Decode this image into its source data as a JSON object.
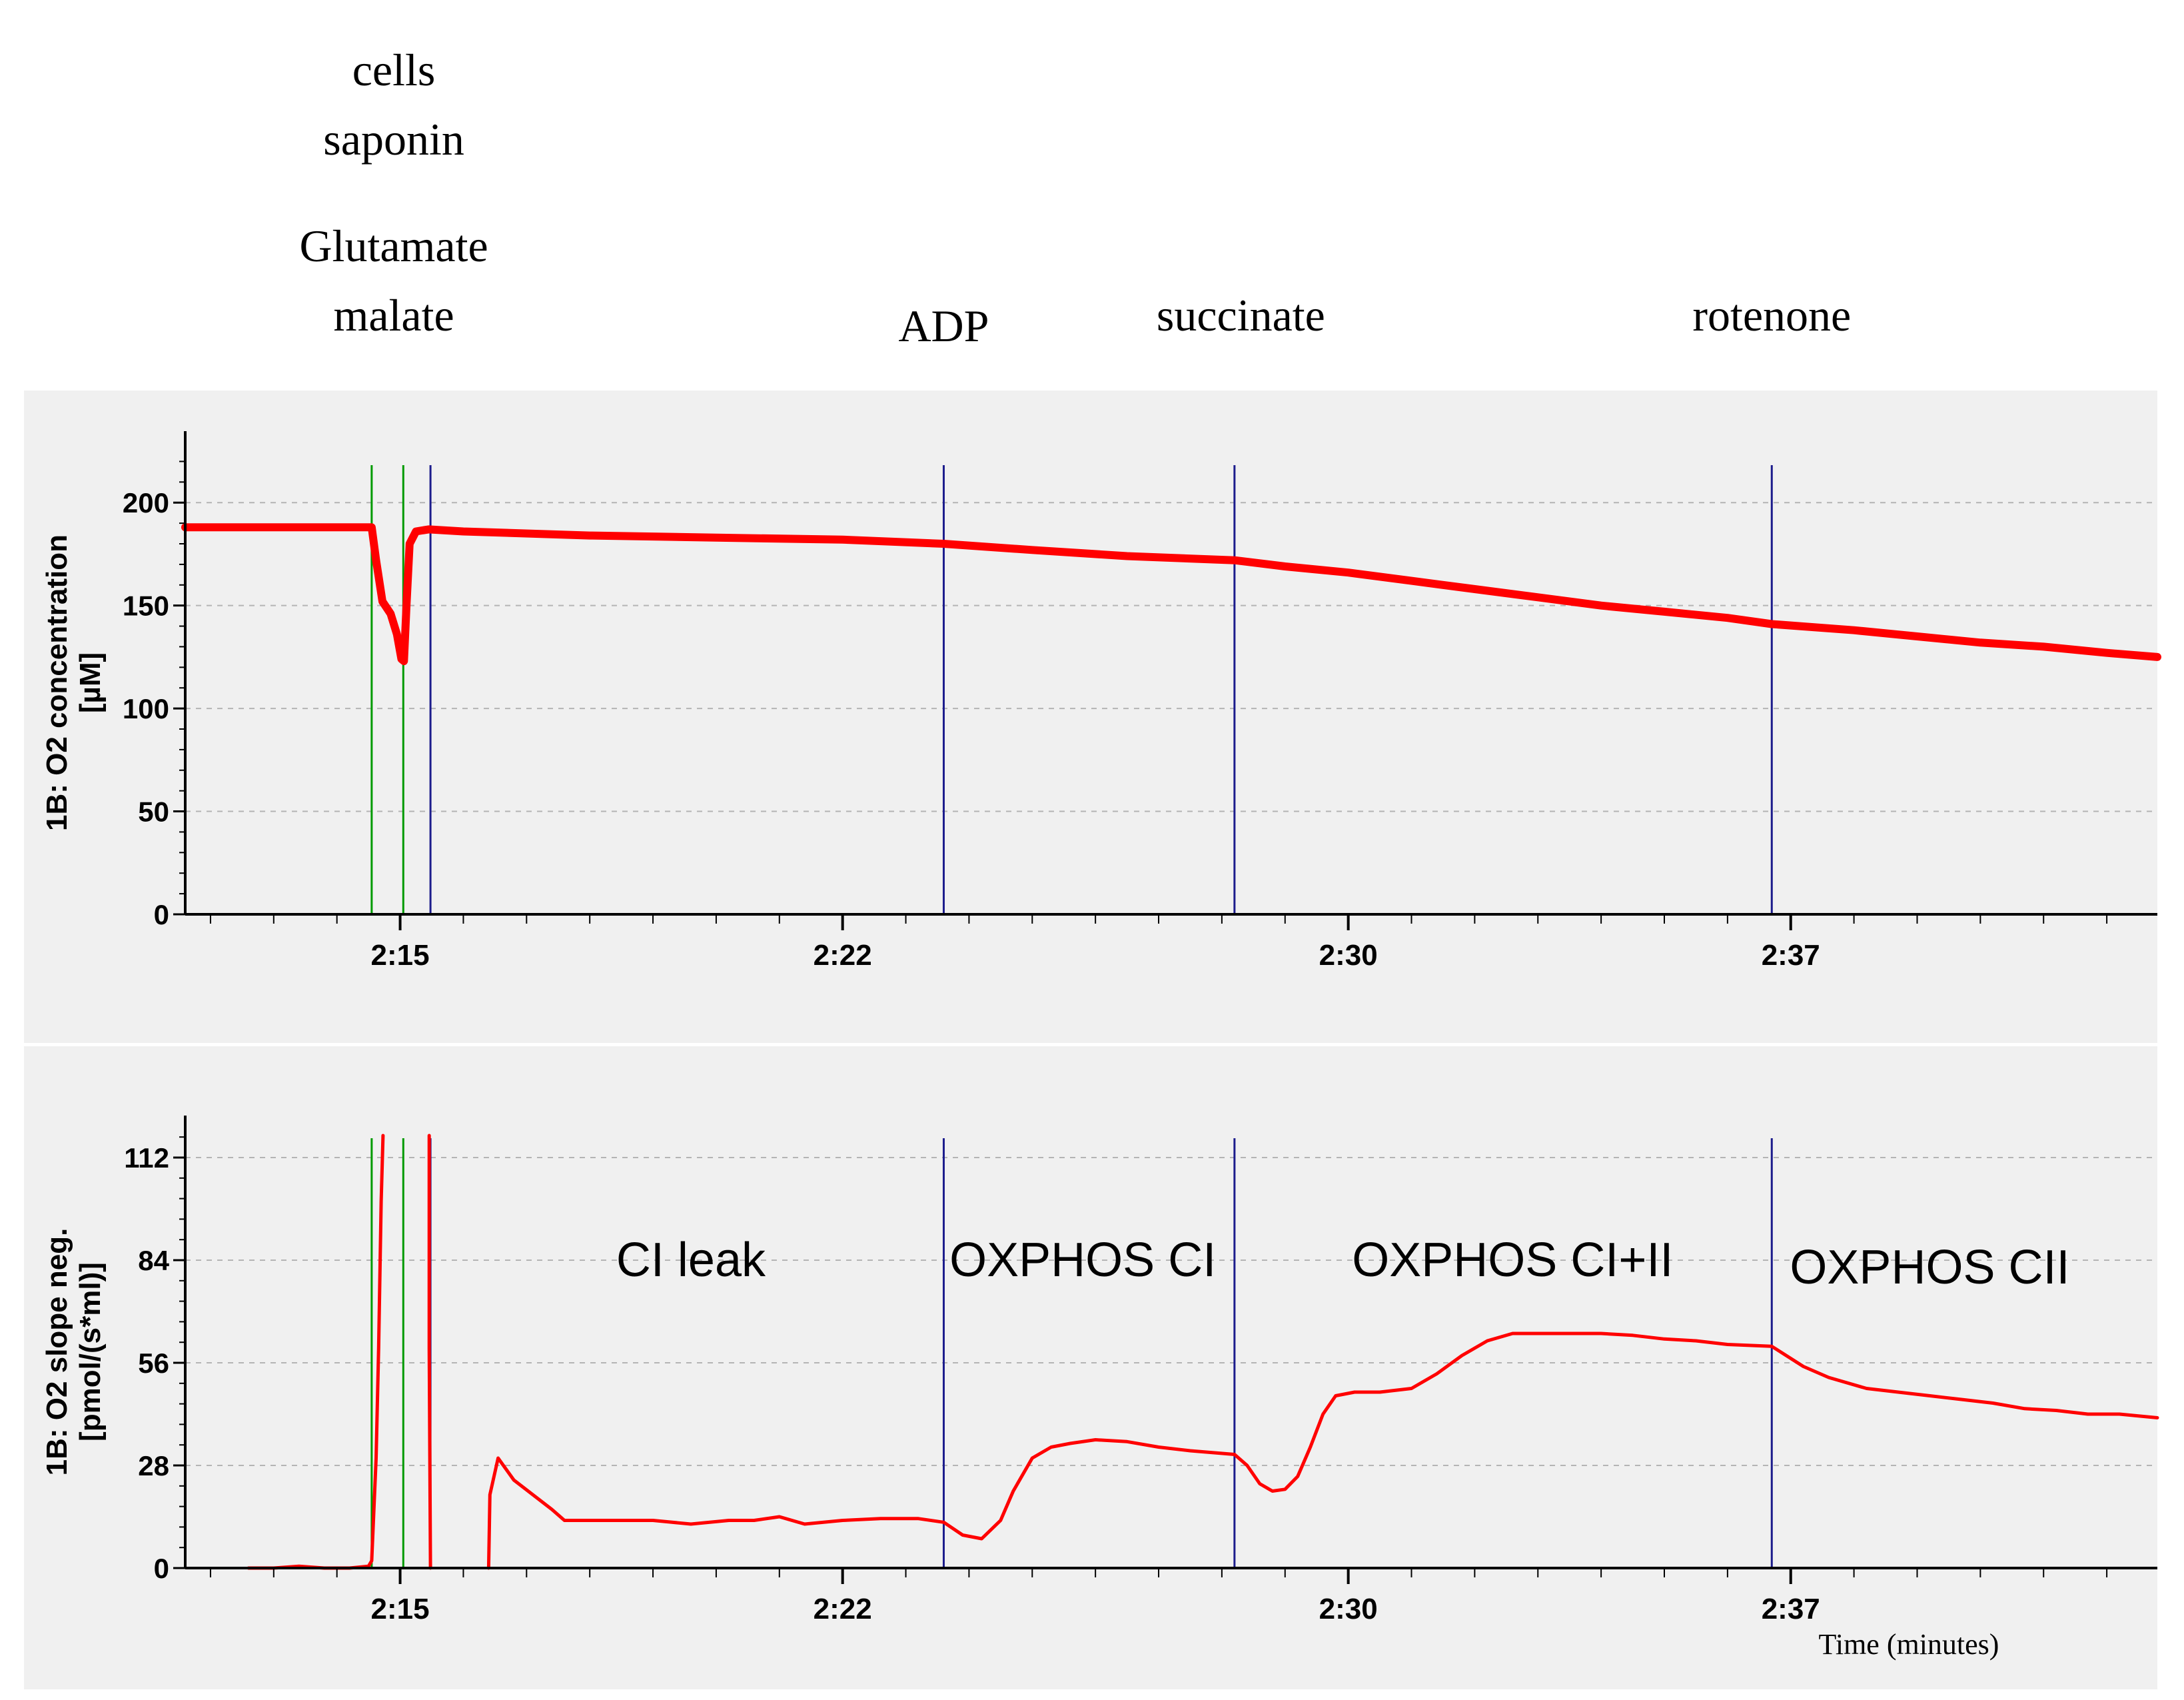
{
  "colors": {
    "panel_bg": "#f0f0f0",
    "trace": "#ff0000",
    "mark_green": "#009a00",
    "mark_blue": "#1c1c8c",
    "grid": "#b4b4b4",
    "axis": "#000000"
  },
  "additions": {
    "labels": [
      {
        "lines": [
          "cells",
          "saponin"
        ],
        "time": 14.9
      },
      {
        "lines": [
          "Glutamate",
          "malate"
        ],
        "time": 14.9
      },
      {
        "lines": [
          "ADP"
        ],
        "time": 23.6
      },
      {
        "lines": [
          "succinate"
        ],
        "time": 28.3
      },
      {
        "lines": [
          "rotenone"
        ],
        "time": 36.7
      }
    ]
  },
  "chart_data": [
    {
      "type": "line",
      "ylabel": "1B: O2 concentration [µM]",
      "ylabel_lines": [
        "1B: O2 concentration",
        "[µM]"
      ],
      "xlim": [
        11.6,
        42.8
      ],
      "ylim": [
        0,
        225
      ],
      "yticks": [
        0,
        50,
        100,
        150,
        200
      ],
      "xticks": [
        {
          "value": 15,
          "label": "2:15"
        },
        {
          "value": 22,
          "label": "2:22"
        },
        {
          "value": 30,
          "label": "2:30"
        },
        {
          "value": 37,
          "label": "2:37"
        }
      ],
      "events": [
        {
          "time": 14.55,
          "color": "green"
        },
        {
          "time": 15.05,
          "color": "green"
        },
        {
          "time": 15.48,
          "color": "blue"
        },
        {
          "time": 23.6,
          "color": "blue"
        },
        {
          "time": 28.2,
          "color": "blue"
        },
        {
          "time": 36.7,
          "color": "blue"
        }
      ],
      "series": [
        {
          "x": [
            11.6,
            14.55,
            14.62,
            14.72,
            14.85,
            14.95,
            15.02,
            15.06,
            15.1,
            15.15,
            15.25,
            15.45,
            16,
            18,
            20,
            22,
            23.6,
            25,
            26.5,
            28.2,
            29,
            30,
            31,
            32,
            33,
            34,
            35,
            36,
            36.7,
            38,
            39,
            40,
            41,
            42,
            42.8
          ],
          "y": [
            188,
            188,
            172,
            152,
            146,
            136,
            124,
            123,
            150,
            180,
            186,
            187,
            186,
            184,
            183,
            182,
            180,
            177,
            174,
            172,
            169,
            166,
            162,
            158,
            154,
            150,
            147,
            144,
            141,
            138,
            135,
            132,
            130,
            127,
            125
          ]
        }
      ]
    },
    {
      "type": "line",
      "ylabel": "1B: O2 slope neg. [pmol/(s*ml)]",
      "ylabel_lines": [
        "1B: O2 slope neg.",
        "[pmol/(s*ml)]"
      ],
      "xlabel": "Time (minutes)",
      "xlim": [
        11.6,
        42.8
      ],
      "ylim": [
        0,
        118
      ],
      "yticks": [
        0,
        28,
        56,
        84,
        112
      ],
      "xticks": [
        {
          "value": 15,
          "label": "2:15"
        },
        {
          "value": 22,
          "label": "2:22"
        },
        {
          "value": 30,
          "label": "2:30"
        },
        {
          "value": 37,
          "label": "2:37"
        }
      ],
      "events": [
        {
          "time": 14.55,
          "color": "green"
        },
        {
          "time": 15.05,
          "color": "green"
        },
        {
          "time": 15.48,
          "color": "blue"
        },
        {
          "time": 23.6,
          "color": "blue"
        },
        {
          "time": 28.2,
          "color": "blue"
        },
        {
          "time": 36.7,
          "color": "blue"
        }
      ],
      "annotations": [
        {
          "text": "CI leak",
          "x": 19.6,
          "y": 84
        },
        {
          "text": "OXPHOS CI",
          "x": 25.8,
          "y": 84
        },
        {
          "text": "OXPHOS CI+II",
          "x": 32.6,
          "y": 84
        },
        {
          "text": "OXPHOS CII",
          "x": 39.2,
          "y": 82
        }
      ],
      "series": [
        {
          "x": [
            12.6,
            13,
            13.4,
            13.8,
            14.2,
            14.5,
            14.55,
            14.62,
            14.66,
            14.7,
            14.73
          ],
          "y": [
            0,
            0,
            0.5,
            0,
            0,
            0.5,
            2,
            30,
            60,
            100,
            118
          ]
        },
        {
          "x": [
            15.46,
            15.46,
            15.48
          ],
          "y": [
            118,
            60,
            0
          ]
        },
        {
          "x": [
            16.4,
            16.42,
            16.55,
            16.8,
            17.1,
            17.4,
            17.6,
            18.2,
            19,
            19.6,
            20.2,
            20.6,
            21,
            21.4,
            22,
            22.6,
            23.2,
            23.6,
            23.9,
            24.2,
            24.5,
            24.7,
            25.0,
            25.3,
            25.6,
            26.0,
            26.5,
            27.0,
            27.5,
            28.2,
            28.4,
            28.6,
            28.8,
            29.0,
            29.2,
            29.4,
            29.6,
            29.8,
            30.1,
            30.5,
            31.0,
            31.4,
            31.8,
            32.2,
            32.6,
            33.0,
            33.5,
            34.0,
            34.5,
            35.0,
            35.5,
            36.0,
            36.7,
            37.2,
            37.6,
            38.2,
            38.7,
            39.2,
            39.7,
            40.2,
            40.7,
            41.2,
            41.7,
            42.2,
            42.8
          ],
          "y": [
            0,
            20,
            30,
            24,
            20,
            16,
            13,
            13,
            13,
            12,
            13,
            13,
            14,
            12,
            13,
            13.5,
            13.5,
            12.5,
            9,
            8,
            13,
            21,
            30,
            33,
            34,
            35,
            34.5,
            33,
            32,
            31,
            28,
            23,
            21,
            21.5,
            25,
            33,
            42,
            47,
            48,
            48,
            49,
            53,
            58,
            62,
            64,
            64,
            64,
            64,
            63.5,
            62.5,
            62,
            61,
            60.5,
            55,
            52,
            49,
            48,
            47,
            46,
            45,
            43.5,
            43,
            42,
            42,
            41
          ]
        }
      ]
    }
  ]
}
